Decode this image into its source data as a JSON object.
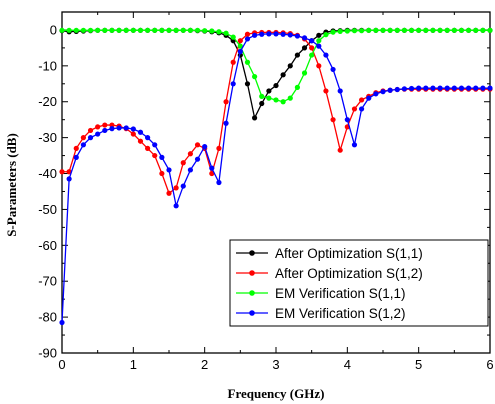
{
  "chart_data": {
    "type": "line",
    "title": "",
    "xlabel": "Frequency (GHz)",
    "ylabel": "S-Parameters (dB)",
    "xlim": [
      0,
      6
    ],
    "ylim": [
      -90,
      5
    ],
    "x_ticks": [
      "0",
      "1",
      "2",
      "3",
      "4",
      "5",
      "6"
    ],
    "y_ticks": [
      "0",
      "-10",
      "-20",
      "-30",
      "-40",
      "-50",
      "-60",
      "-70",
      "-80",
      "-90"
    ],
    "grid": false,
    "legend_position": "bottom-right",
    "series": [
      {
        "name": "After Optimization S(1,1)",
        "color": "#000000",
        "x": [
          0,
          0.1,
          0.2,
          0.3,
          0.4,
          0.5,
          0.6,
          0.7,
          0.8,
          0.9,
          1.0,
          1.1,
          1.2,
          1.3,
          1.4,
          1.5,
          1.6,
          1.7,
          1.8,
          1.9,
          2.0,
          2.1,
          2.2,
          2.3,
          2.4,
          2.5,
          2.6,
          2.7,
          2.8,
          2.9,
          3.0,
          3.1,
          3.2,
          3.3,
          3.4,
          3.5,
          3.6,
          3.7,
          3.8,
          3.9,
          4.0,
          4.1,
          4.2,
          4.3,
          4.4,
          4.5,
          4.6,
          4.7,
          4.8,
          4.9,
          5.0,
          5.1,
          5.2,
          5.3,
          5.4,
          5.5,
          5.6,
          5.7,
          5.8,
          5.9,
          6.0
        ],
        "y": [
          -0.2,
          -0.5,
          -0.4,
          -0.3,
          -0.2,
          -0.1,
          -0.1,
          -0.1,
          -0.1,
          -0.1,
          -0.1,
          -0.1,
          -0.1,
          -0.1,
          -0.1,
          -0.1,
          -0.1,
          -0.1,
          -0.1,
          -0.2,
          -0.3,
          -0.5,
          -0.8,
          -1.5,
          -3,
          -7,
          -15,
          -24.5,
          -20.5,
          -17,
          -15.5,
          -12.5,
          -10,
          -7,
          -5,
          -3,
          -1.5,
          -0.6,
          -0.3,
          -0.2,
          -0.1,
          -0.1,
          -0.1,
          -0.1,
          -0.1,
          -0.1,
          -0.1,
          -0.1,
          -0.1,
          -0.1,
          -0.1,
          -0.1,
          -0.1,
          -0.1,
          -0.1,
          -0.1,
          -0.1,
          -0.1,
          -0.1,
          -0.1,
          -0.1
        ]
      },
      {
        "name": "After Optimization S(1,2)",
        "color": "#ff0000",
        "x": [
          0,
          0.1,
          0.2,
          0.3,
          0.4,
          0.5,
          0.6,
          0.7,
          0.8,
          0.9,
          1.0,
          1.1,
          1.2,
          1.3,
          1.4,
          1.5,
          1.6,
          1.7,
          1.8,
          1.9,
          2.0,
          2.1,
          2.2,
          2.3,
          2.4,
          2.5,
          2.6,
          2.7,
          2.8,
          2.9,
          3.0,
          3.1,
          3.2,
          3.3,
          3.4,
          3.5,
          3.6,
          3.7,
          3.8,
          3.9,
          4.0,
          4.1,
          4.2,
          4.3,
          4.4,
          4.5,
          4.6,
          4.7,
          4.8,
          4.9,
          5.0,
          5.1,
          5.2,
          5.3,
          5.4,
          5.5,
          5.6,
          5.7,
          5.8,
          5.9,
          6.0
        ],
        "y": [
          -39.5,
          -39.5,
          -33,
          -30,
          -28,
          -27,
          -26.5,
          -26.5,
          -26.8,
          -27.5,
          -29,
          -31,
          -33,
          -35,
          -40,
          -45.5,
          -44,
          -37,
          -34.5,
          -32,
          -33,
          -40,
          -33,
          -20,
          -9,
          -3,
          -1.2,
          -0.8,
          -0.7,
          -0.7,
          -0.7,
          -0.8,
          -1,
          -1.5,
          -2.5,
          -5,
          -10,
          -17,
          -25,
          -33.5,
          -27,
          -22,
          -19.5,
          -18.5,
          -17.5,
          -17,
          -16.8,
          -16.6,
          -16.5,
          -16.5,
          -16.5,
          -16.5,
          -16.5,
          -16.5,
          -16.5,
          -16.5,
          -16.5,
          -16.5,
          -16.5,
          -16.5,
          -16.5
        ]
      },
      {
        "name": "EM Verification S(1,1)",
        "color": "#00ff00",
        "x": [
          0,
          0.1,
          0.2,
          0.3,
          0.4,
          0.5,
          0.6,
          0.7,
          0.8,
          0.9,
          1.0,
          1.1,
          1.2,
          1.3,
          1.4,
          1.5,
          1.6,
          1.7,
          1.8,
          1.9,
          2.0,
          2.1,
          2.2,
          2.3,
          2.4,
          2.5,
          2.6,
          2.7,
          2.8,
          2.9,
          3.0,
          3.1,
          3.2,
          3.3,
          3.4,
          3.5,
          3.6,
          3.7,
          3.8,
          3.9,
          4.0,
          4.1,
          4.2,
          4.3,
          4.4,
          4.5,
          4.6,
          4.7,
          4.8,
          4.9,
          5.0,
          5.1,
          5.2,
          5.3,
          5.4,
          5.5,
          5.6,
          5.7,
          5.8,
          5.9,
          6.0
        ],
        "y": [
          -0.1,
          -0.1,
          -0.1,
          -0.1,
          -0.1,
          -0.1,
          -0.1,
          -0.1,
          -0.1,
          -0.1,
          -0.1,
          -0.1,
          -0.1,
          -0.1,
          -0.1,
          -0.1,
          -0.1,
          -0.1,
          -0.1,
          -0.1,
          -0.2,
          -0.3,
          -0.5,
          -0.9,
          -2,
          -4.5,
          -9,
          -13,
          -18.5,
          -19,
          -19.5,
          -20,
          -19,
          -16,
          -12,
          -7,
          -3,
          -1.3,
          -0.6,
          -0.4,
          -0.3,
          -0.2,
          -0.2,
          -0.1,
          -0.1,
          -0.1,
          -0.1,
          -0.1,
          -0.1,
          -0.1,
          -0.1,
          -0.1,
          -0.1,
          -0.1,
          -0.1,
          -0.1,
          -0.1,
          -0.1,
          -0.1,
          -0.1,
          -0.1
        ]
      },
      {
        "name": "EM Verification S(1,2)",
        "color": "#0000ff",
        "x": [
          0,
          0.1,
          0.2,
          0.3,
          0.4,
          0.5,
          0.6,
          0.7,
          0.8,
          0.9,
          1.0,
          1.1,
          1.2,
          1.3,
          1.4,
          1.5,
          1.6,
          1.7,
          1.8,
          1.9,
          2.0,
          2.1,
          2.2,
          2.3,
          2.4,
          2.5,
          2.6,
          2.7,
          2.8,
          2.9,
          3.0,
          3.1,
          3.2,
          3.3,
          3.4,
          3.5,
          3.6,
          3.7,
          3.8,
          3.9,
          4.0,
          4.1,
          4.2,
          4.3,
          4.4,
          4.5,
          4.6,
          4.7,
          4.8,
          4.9,
          5.0,
          5.1,
          5.2,
          5.3,
          5.4,
          5.5,
          5.6,
          5.7,
          5.8,
          5.9,
          6.0
        ],
        "y": [
          -81.5,
          -41.5,
          -35.5,
          -32,
          -30,
          -29,
          -28,
          -27.5,
          -27.3,
          -27.3,
          -27.6,
          -28.5,
          -30,
          -32,
          -35.5,
          -39,
          -49,
          -43.5,
          -39,
          -36,
          -32.5,
          -38.5,
          -42.5,
          -26,
          -15,
          -6,
          -2.5,
          -1.5,
          -1.2,
          -1.1,
          -1.1,
          -1.2,
          -1.4,
          -1.7,
          -2.2,
          -3,
          -4.5,
          -7,
          -11,
          -17,
          -25,
          -32,
          -22,
          -19,
          -17.8,
          -17.2,
          -16.8,
          -16.6,
          -16.4,
          -16.3,
          -16.2,
          -16.2,
          -16.2,
          -16.2,
          -16.2,
          -16.2,
          -16.2,
          -16.2,
          -16.2,
          -16.2,
          -16.2
        ]
      }
    ]
  }
}
